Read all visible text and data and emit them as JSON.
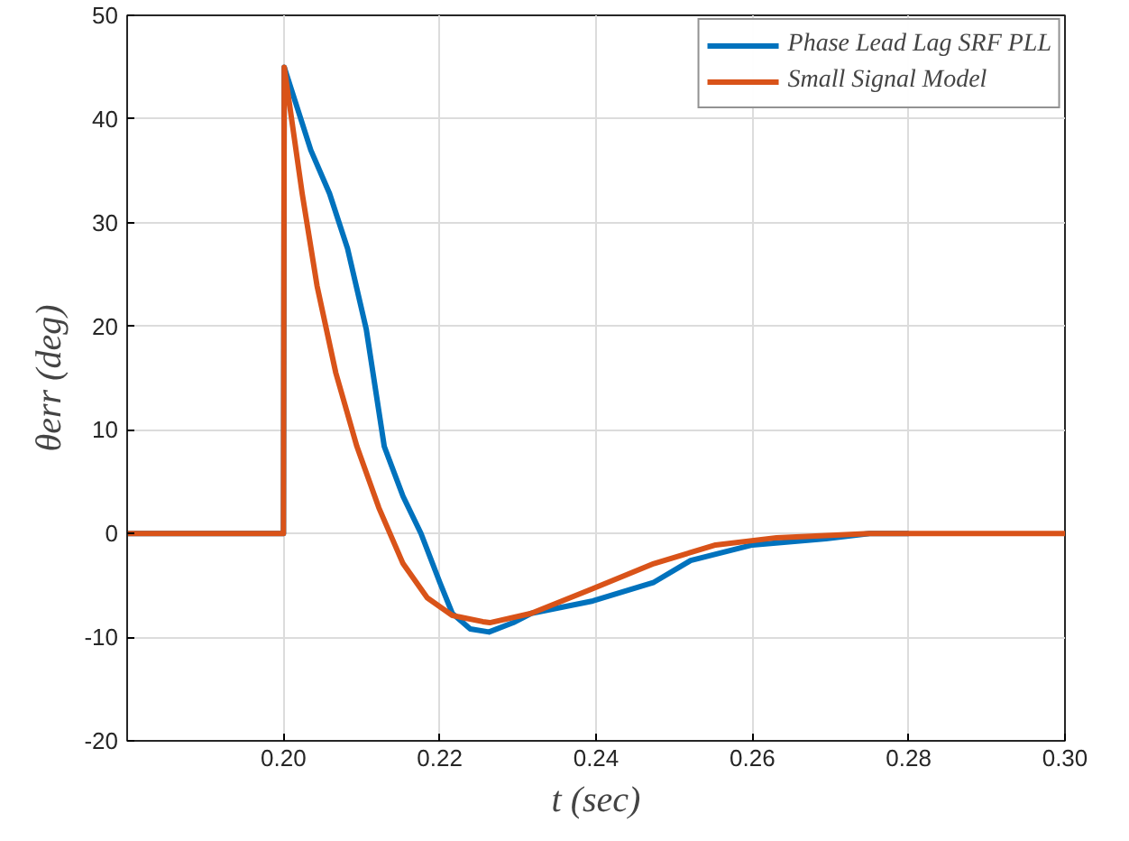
{
  "chart_data": {
    "type": "line",
    "xlabel": "t (sec)",
    "ylabel": "θerr (deg)",
    "xlim": [
      0.18,
      0.3
    ],
    "ylim": [
      -20,
      50
    ],
    "xticks": [
      {
        "value": 0.2,
        "label": "0.20"
      },
      {
        "value": 0.22,
        "label": "0.22"
      },
      {
        "value": 0.24,
        "label": "0.24"
      },
      {
        "value": 0.26,
        "label": "0.26"
      },
      {
        "value": 0.28,
        "label": "0.28"
      },
      {
        "value": 0.3,
        "label": "0.30"
      }
    ],
    "yticks": [
      -20,
      -10,
      0,
      10,
      20,
      30,
      40,
      50
    ],
    "grid": true,
    "legend": "top right",
    "line_style": "solid",
    "series": [
      {
        "name": "Phase Lead Lag SRF PLL",
        "color": "#0072bd",
        "x": [
          0.18,
          0.2,
          0.2001,
          0.2035,
          0.2059,
          0.2082,
          0.2106,
          0.2129,
          0.2153,
          0.2176,
          0.22,
          0.2216,
          0.2239,
          0.2263,
          0.2294,
          0.2317,
          0.2396,
          0.2474,
          0.2521,
          0.26,
          0.2694,
          0.275,
          0.28
        ],
        "values": [
          0,
          0,
          45,
          37,
          32.8,
          27.5,
          19.7,
          8.4,
          3.6,
          0,
          -4.7,
          -7.7,
          -9.2,
          -9.5,
          -8.6,
          -7.7,
          -6.5,
          -4.7,
          -2.6,
          -1.1,
          -0.5,
          0,
          0
        ]
      },
      {
        "name": "Small Signal Model",
        "color": "#d95319",
        "x": [
          0.18,
          0.2,
          0.2,
          0.2001,
          0.2024,
          0.2043,
          0.2067,
          0.2094,
          0.2122,
          0.2153,
          0.2184,
          0.2216,
          0.2255,
          0.2264,
          0.2317,
          0.2396,
          0.2474,
          0.2553,
          0.2631,
          0.275,
          0.28,
          0.29,
          0.3
        ],
        "values": [
          0,
          0,
          0,
          45,
          32.8,
          23.9,
          15.5,
          8.4,
          2.5,
          -2.9,
          -6.2,
          -7.9,
          -8.5,
          -8.6,
          -7.7,
          -5.3,
          -2.9,
          -1.1,
          -0.4,
          0,
          0,
          0,
          0
        ]
      }
    ]
  }
}
